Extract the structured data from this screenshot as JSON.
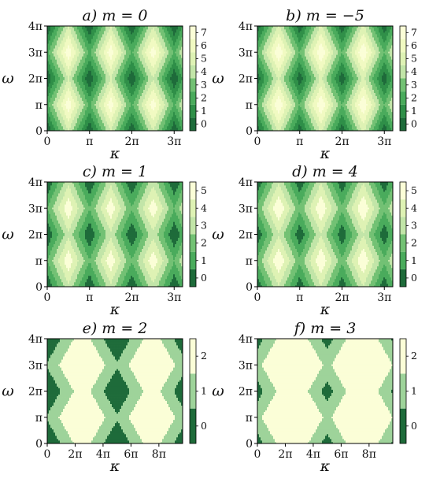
{
  "colors": {
    "scale": [
      "#1e6b3a",
      "#2f8f48",
      "#4aab5c",
      "#73c174",
      "#9ed39a",
      "#c2e5a8",
      "#def2b4",
      "#f1fac2",
      "#fbfed7"
    ],
    "frame": "#000000",
    "background": "#ffffff"
  },
  "chart_data": [
    {
      "type": "heatmap",
      "title": "a) m = 0",
      "xlabel": "κ",
      "ylabel": "ω",
      "xlim_over_pi": [
        0,
        3.2
      ],
      "ylim_over_pi": [
        0,
        4
      ],
      "xticks": [
        "0",
        "π",
        "2π",
        "3π"
      ],
      "xtick_values_over_pi": [
        0,
        1,
        2,
        3
      ],
      "yticks": [
        "0",
        "π",
        "2π",
        "3π",
        "4π"
      ],
      "ytick_values_over_pi": [
        0,
        1,
        2,
        3,
        4
      ],
      "colorbar": {
        "ticks": [
          "0",
          "1",
          "2",
          "3",
          "4",
          "5",
          "6",
          "7"
        ],
        "range": [
          -0.5,
          7.5
        ]
      },
      "level_pattern": {
        "m": 0,
        "x_period_over_pi": 1,
        "y_period_over_pi": 2,
        "max_level": 7
      }
    },
    {
      "type": "heatmap",
      "title": "b) m = −5",
      "xlabel": "κ",
      "ylabel": "ω",
      "xlim_over_pi": [
        0,
        3.2
      ],
      "ylim_over_pi": [
        0,
        4
      ],
      "xticks": [
        "0",
        "π",
        "2π",
        "3π"
      ],
      "xtick_values_over_pi": [
        0,
        1,
        2,
        3
      ],
      "yticks": [
        "0",
        "π",
        "2π",
        "3π",
        "4π"
      ],
      "ytick_values_over_pi": [
        0,
        1,
        2,
        3,
        4
      ],
      "colorbar": {
        "ticks": [
          "0",
          "1",
          "2",
          "3",
          "4",
          "5",
          "6",
          "7"
        ],
        "range": [
          -0.5,
          7.5
        ]
      },
      "level_pattern": {
        "m": -5,
        "x_period_over_pi": 1,
        "y_period_over_pi": 2,
        "max_level": 7
      }
    },
    {
      "type": "heatmap",
      "title": "c) m = 1",
      "xlabel": "κ",
      "ylabel": "ω",
      "xlim_over_pi": [
        0,
        3.2
      ],
      "ylim_over_pi": [
        0,
        4
      ],
      "xticks": [
        "0",
        "π",
        "2π",
        "3π"
      ],
      "xtick_values_over_pi": [
        0,
        1,
        2,
        3
      ],
      "yticks": [
        "0",
        "π",
        "2π",
        "3π",
        "4π"
      ],
      "ytick_values_over_pi": [
        0,
        1,
        2,
        3,
        4
      ],
      "colorbar": {
        "ticks": [
          "0",
          "1",
          "2",
          "3",
          "4",
          "5"
        ],
        "range": [
          -0.5,
          5.5
        ]
      },
      "level_pattern": {
        "m": 1,
        "x_period_over_pi": 1,
        "y_period_over_pi": 2,
        "max_level": 5
      }
    },
    {
      "type": "heatmap",
      "title": "d) m = 4",
      "xlabel": "κ",
      "ylabel": "ω",
      "xlim_over_pi": [
        0,
        3.2
      ],
      "ylim_over_pi": [
        0,
        4
      ],
      "xticks": [
        "0",
        "π",
        "2π",
        "3π"
      ],
      "xtick_values_over_pi": [
        0,
        1,
        2,
        3
      ],
      "yticks": [
        "0",
        "π",
        "2π",
        "3π",
        "4π"
      ],
      "ytick_values_over_pi": [
        0,
        1,
        2,
        3,
        4
      ],
      "colorbar": {
        "ticks": [
          "0",
          "1",
          "2",
          "3",
          "4",
          "5"
        ],
        "range": [
          -0.5,
          5.5
        ]
      },
      "level_pattern": {
        "m": 4,
        "x_period_over_pi": 1,
        "y_period_over_pi": 2,
        "max_level": 5
      }
    },
    {
      "type": "heatmap",
      "title": "e) m = 2",
      "xlabel": "κ",
      "ylabel": "ω",
      "xlim_over_pi": [
        0,
        9.7
      ],
      "ylim_over_pi": [
        0,
        4
      ],
      "xticks": [
        "0",
        "2π",
        "4π",
        "6π",
        "8π"
      ],
      "xtick_values_over_pi": [
        0,
        2,
        4,
        6,
        8
      ],
      "yticks": [
        "0",
        "π",
        "2π",
        "3π",
        "4π"
      ],
      "ytick_values_over_pi": [
        0,
        1,
        2,
        3,
        4
      ],
      "colorbar": {
        "ticks": [
          "0",
          "1",
          "2"
        ],
        "range": [
          -0.5,
          2.5
        ]
      },
      "level_pattern": {
        "m": 2,
        "x_period_over_pi": 5,
        "y_period_over_pi": 2,
        "max_level": 2
      }
    },
    {
      "type": "heatmap",
      "title": "f) m = 3",
      "xlabel": "κ",
      "ylabel": "ω",
      "xlim_over_pi": [
        0,
        9.7
      ],
      "ylim_over_pi": [
        0,
        4
      ],
      "xticks": [
        "0",
        "2π",
        "4π",
        "6π",
        "8π"
      ],
      "xtick_values_over_pi": [
        0,
        2,
        4,
        6,
        8
      ],
      "yticks": [
        "0",
        "π",
        "2π",
        "3π",
        "4π"
      ],
      "ytick_values_over_pi": [
        0,
        1,
        2,
        3,
        4
      ],
      "colorbar": {
        "ticks": [
          "0",
          "1",
          "2"
        ],
        "range": [
          -0.5,
          2.5
        ]
      },
      "level_pattern": {
        "m": 3,
        "x_period_over_pi": 5,
        "y_period_over_pi": 2,
        "max_level": 2
      }
    }
  ]
}
